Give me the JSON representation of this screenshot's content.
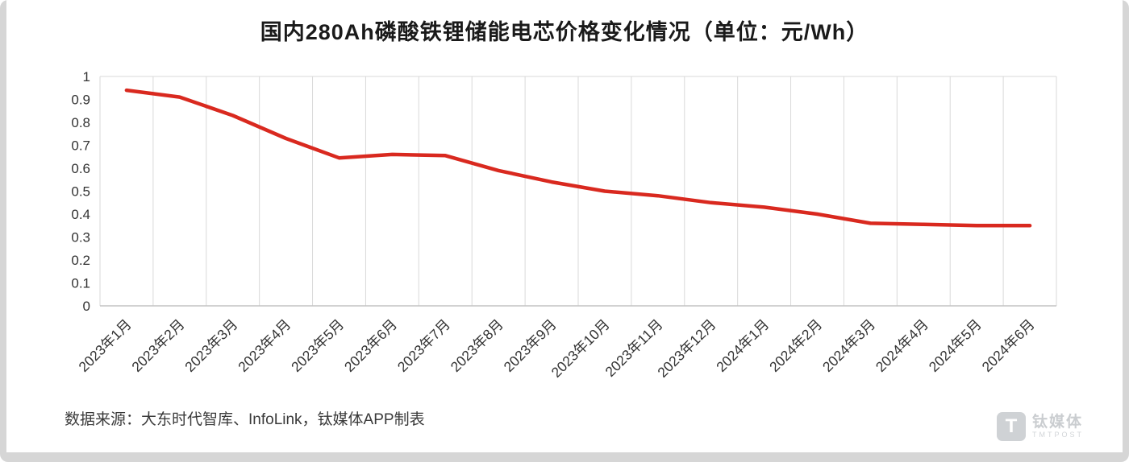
{
  "title": "国内280Ah磷酸铁锂储能电芯价格变化情况（单位：元/Wh）",
  "source_note": "数据来源：大东时代智库、InfoLink，钛媒体APP制表",
  "watermark": {
    "logo_letter": "T",
    "name": "钛媒体",
    "sub": "TMTPOST"
  },
  "chart_data": {
    "type": "line",
    "title": "国内280Ah磷酸铁锂储能电芯价格变化情况（单位：元/Wh）",
    "categories": [
      "2023年1月",
      "2023年2月",
      "2023年3月",
      "2023年4月",
      "2023年5月",
      "2023年6月",
      "2023年7月",
      "2023年8月",
      "2023年9月",
      "2023年10月",
      "2023年11月",
      "2023年12月",
      "2024年1月",
      "2024年2月",
      "2024年3月",
      "2024年4月",
      "2024年5月",
      "2024年6月"
    ],
    "values": [
      0.94,
      0.91,
      0.83,
      0.73,
      0.645,
      0.66,
      0.655,
      0.59,
      0.54,
      0.5,
      0.48,
      0.45,
      0.43,
      0.4,
      0.36,
      0.355,
      0.35,
      0.35
    ],
    "unit": "元/Wh",
    "ylim": [
      0,
      1
    ],
    "ytick_labels": [
      "0",
      "0.1",
      "0.2",
      "0.3",
      "0.4",
      "0.5",
      "0.6",
      "0.7",
      "0.8",
      "0.9",
      "1"
    ],
    "grid": "vertical",
    "legend": "none",
    "line_color": "#d9291f",
    "grid_color": "#d9d9d9",
    "axis_color": "#c4c4c4",
    "tick_label_color": "#333333"
  }
}
